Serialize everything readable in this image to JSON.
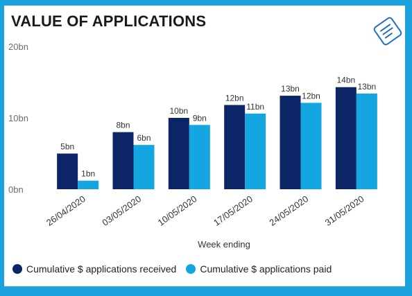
{
  "chart_data": {
    "type": "bar",
    "title": "VALUE OF APPLICATIONS",
    "xlabel": "Week ending",
    "ylabel": "",
    "ylim": [
      0,
      20
    ],
    "yticks": [
      {
        "value": 0,
        "label": "0bn"
      },
      {
        "value": 10,
        "label": "10bn"
      },
      {
        "value": 20,
        "label": "20bn"
      }
    ],
    "categories": [
      "26/04/2020",
      "03/05/2020",
      "10/05/2020",
      "17/05/2020",
      "24/05/2020",
      "31/05/2020"
    ],
    "series": [
      {
        "name": "Cumulative $ applications received",
        "color": "#0b2566",
        "values": [
          5.0,
          8.0,
          10.0,
          11.8,
          13.1,
          14.3
        ],
        "labels": [
          "5bn",
          "8bn",
          "10bn",
          "12bn",
          "13bn",
          "14bn"
        ]
      },
      {
        "name": "Cumulative $ applications paid",
        "color": "#14a6e0",
        "values": [
          1.2,
          6.2,
          9.0,
          10.6,
          12.1,
          13.4
        ],
        "labels": [
          "1bn",
          "6bn",
          "9bn",
          "11bn",
          "12bn",
          "13bn"
        ]
      }
    ],
    "legend_position": "bottom-left",
    "grid": false
  },
  "icon": "document-icon"
}
